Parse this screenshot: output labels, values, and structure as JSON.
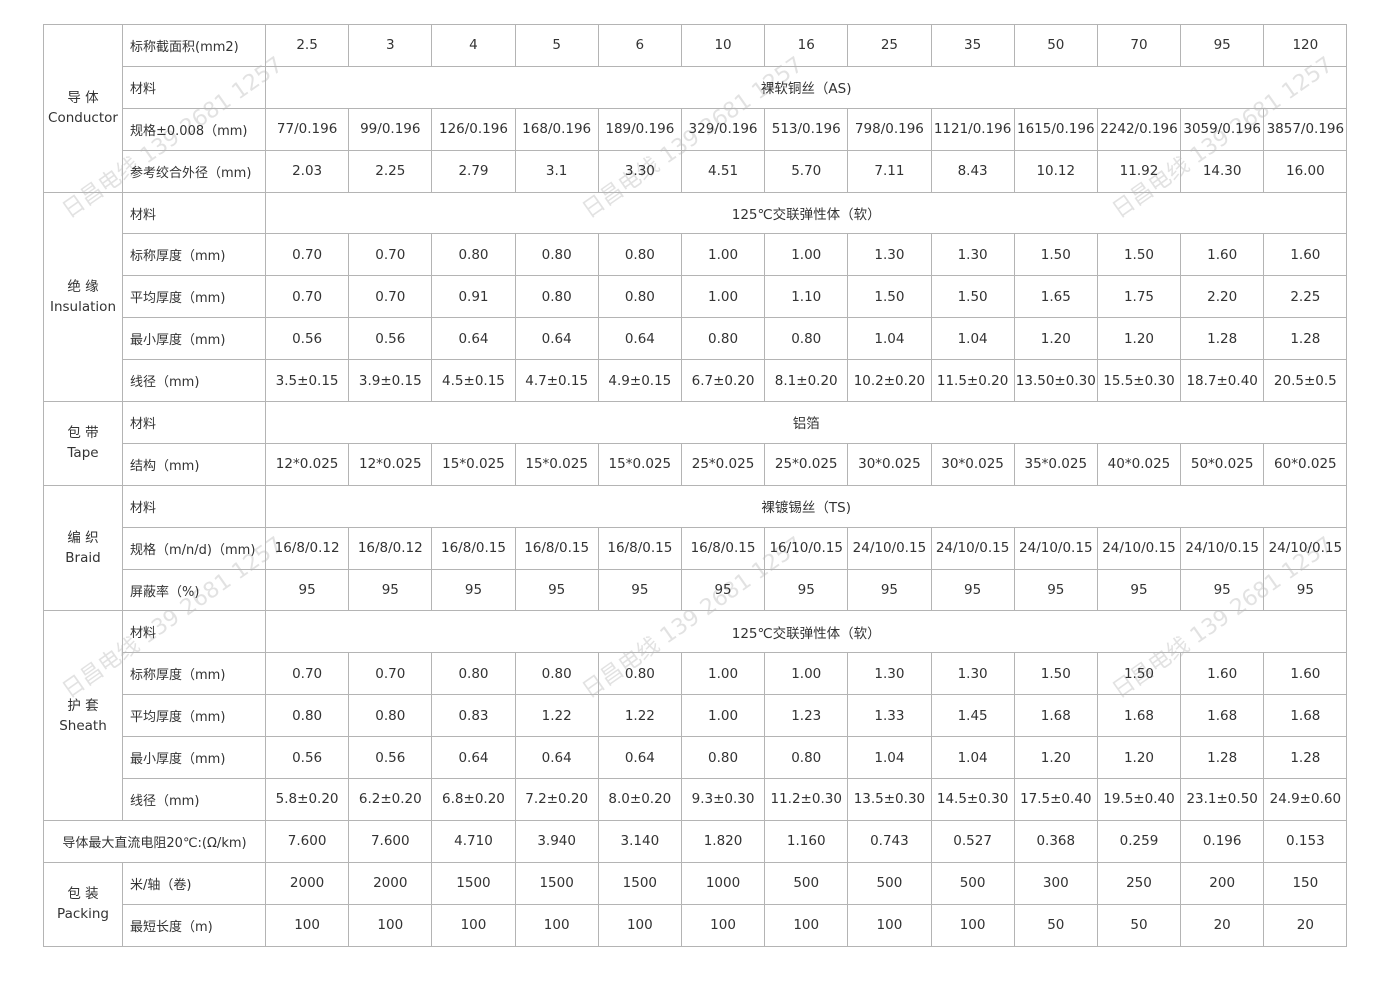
{
  "watermark": "日昌电线 139 2681 1257",
  "header": {
    "label": "标称截面积(mm2)",
    "sizes": [
      "2.5",
      "3",
      "4",
      "5",
      "6",
      "10",
      "16",
      "25",
      "35",
      "50",
      "70",
      "95",
      "120"
    ]
  },
  "groups": [
    {
      "name_cn": "导 体",
      "name_en": "Conductor",
      "rows": [
        {
          "label": "材料",
          "span": "裸软铜丝（AS)"
        },
        {
          "label": "规格±0.008（mm)",
          "values": [
            "77/0.196",
            "99/0.196",
            "126/0.196",
            "168/0.196",
            "189/0.196",
            "329/0.196",
            "513/0.196",
            "798/0.196",
            "1121/0.196",
            "1615/0.196",
            "2242/0.196",
            "3059/0.196",
            "3857/0.196"
          ]
        },
        {
          "label": "参考绞合外径（mm)",
          "values": [
            "2.03",
            "2.25",
            "2.79",
            "3.1",
            "3.30",
            "4.51",
            "5.70",
            "7.11",
            "8.43",
            "10.12",
            "11.92",
            "14.30",
            "16.00"
          ]
        }
      ]
    },
    {
      "name_cn": "绝 缘",
      "name_en": "Insulation",
      "rows": [
        {
          "label": "材料",
          "span": "125℃交联弹性体（软）"
        },
        {
          "label": "标称厚度（mm)",
          "values": [
            "0.70",
            "0.70",
            "0.80",
            "0.80",
            "0.80",
            "1.00",
            "1.00",
            "1.30",
            "1.30",
            "1.50",
            "1.50",
            "1.60",
            "1.60"
          ]
        },
        {
          "label": "平均厚度（mm)",
          "values": [
            "0.70",
            "0.70",
            "0.91",
            "0.80",
            "0.80",
            "1.00",
            "1.10",
            "1.50",
            "1.50",
            "1.65",
            "1.75",
            "2.20",
            "2.25"
          ]
        },
        {
          "label": "最小厚度（mm)",
          "values": [
            "0.56",
            "0.56",
            "0.64",
            "0.64",
            "0.64",
            "0.80",
            "0.80",
            "1.04",
            "1.04",
            "1.20",
            "1.20",
            "1.28",
            "1.28"
          ]
        },
        {
          "label": "线径（mm)",
          "values": [
            "3.5±0.15",
            "3.9±0.15",
            "4.5±0.15",
            "4.7±0.15",
            "4.9±0.15",
            "6.7±0.20",
            "8.1±0.20",
            "10.2±0.20",
            "11.5±0.20",
            "13.50±0.30",
            "15.5±0.30",
            "18.7±0.40",
            "20.5±0.5"
          ]
        }
      ]
    },
    {
      "name_cn": "包 带",
      "name_en": "Tape",
      "rows": [
        {
          "label": "材料",
          "span": "铝箔"
        },
        {
          "label": "结构（mm)",
          "values": [
            "12*0.025",
            "12*0.025",
            "15*0.025",
            "15*0.025",
            "15*0.025",
            "25*0.025",
            "25*0.025",
            "30*0.025",
            "30*0.025",
            "35*0.025",
            "40*0.025",
            "50*0.025",
            "60*0.025"
          ]
        }
      ]
    },
    {
      "name_cn": "编 织",
      "name_en": "Braid",
      "rows": [
        {
          "label": "材料",
          "span": "裸镀锡丝（TS)"
        },
        {
          "label": "规格（m/n/d)（mm)",
          "values": [
            "16/8/0.12",
            "16/8/0.12",
            "16/8/0.15",
            "16/8/0.15",
            "16/8/0.15",
            "16/8/0.15",
            "16/10/0.15",
            "24/10/0.15",
            "24/10/0.15",
            "24/10/0.15",
            "24/10/0.15",
            "24/10/0.15",
            "24/10/0.15"
          ]
        },
        {
          "label": "屏蔽率（%)",
          "values": [
            "95",
            "95",
            "95",
            "95",
            "95",
            "95",
            "95",
            "95",
            "95",
            "95",
            "95",
            "95",
            "95"
          ]
        }
      ]
    },
    {
      "name_cn": "护 套",
      "name_en": "Sheath",
      "rows": [
        {
          "label": "材料",
          "span": "125℃交联弹性体（软）"
        },
        {
          "label": "标称厚度（mm)",
          "values": [
            "0.70",
            "0.70",
            "0.80",
            "0.80",
            "0.80",
            "1.00",
            "1.00",
            "1.30",
            "1.30",
            "1.50",
            "1.50",
            "1.60",
            "1.60"
          ]
        },
        {
          "label": "平均厚度（mm)",
          "values": [
            "0.80",
            "0.80",
            "0.83",
            "1.22",
            "1.22",
            "1.00",
            "1.23",
            "1.33",
            "1.45",
            "1.68",
            "1.68",
            "1.68",
            "1.68"
          ]
        },
        {
          "label": "最小厚度（mm)",
          "values": [
            "0.56",
            "0.56",
            "0.64",
            "0.64",
            "0.64",
            "0.80",
            "0.80",
            "1.04",
            "1.04",
            "1.20",
            "1.20",
            "1.28",
            "1.28"
          ]
        },
        {
          "label": "线径（mm)",
          "values": [
            "5.8±0.20",
            "6.2±0.20",
            "6.8±0.20",
            "7.2±0.20",
            "8.0±0.20",
            "9.3±0.30",
            "11.2±0.30",
            "13.5±0.30",
            "14.5±0.30",
            "17.5±0.40",
            "19.5±0.40",
            "23.1±0.50",
            "24.9±0.60"
          ]
        }
      ]
    }
  ],
  "resistance": {
    "label": "导体最大直流电阻20℃:(Ω/km)",
    "values": [
      "7.600",
      "7.600",
      "4.710",
      "3.940",
      "3.140",
      "1.820",
      "1.160",
      "0.743",
      "0.527",
      "0.368",
      "0.259",
      "0.196",
      "0.153"
    ]
  },
  "packing": {
    "name_cn": "包 装",
    "name_en": "Packing",
    "rows": [
      {
        "label": "米/轴（卷)",
        "values": [
          "2000",
          "2000",
          "1500",
          "1500",
          "1500",
          "1000",
          "500",
          "500",
          "500",
          "300",
          "250",
          "200",
          "150"
        ]
      },
      {
        "label": "最短长度（m)",
        "values": [
          "100",
          "100",
          "100",
          "100",
          "100",
          "100",
          "100",
          "100",
          "100",
          "50",
          "50",
          "20",
          "20"
        ]
      }
    ]
  }
}
